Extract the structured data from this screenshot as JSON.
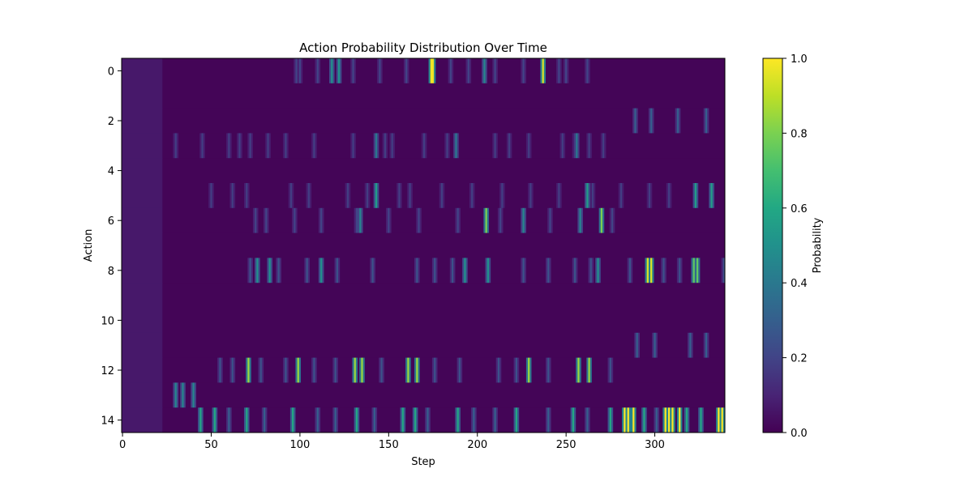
{
  "chart_data": {
    "type": "heatmap",
    "title": "Action Probability Distribution Over Time",
    "xlabel": "Step",
    "ylabel": "Action",
    "xlim": [
      -0.5,
      339.5
    ],
    "ylim": [
      14.5,
      -0.5
    ],
    "x_ticks": [
      0,
      50,
      100,
      150,
      200,
      250,
      300
    ],
    "y_ticks": [
      0,
      2,
      4,
      6,
      8,
      10,
      12,
      14
    ],
    "n_steps": 340,
    "n_actions": 15,
    "colormap": "viridis",
    "colorbar": {
      "label": "Probability",
      "range": [
        0,
        1
      ],
      "ticks": [
        "0.0",
        "0.2",
        "0.4",
        "0.6",
        "0.8",
        "1.0"
      ]
    },
    "background_value": 0.01,
    "early_uniform": {
      "step_end": 22,
      "value": 0.067
    },
    "highlights": [
      {
        "action": 0,
        "steps": [
          174,
          175
        ],
        "value": 0.98
      },
      {
        "action": 0,
        "steps": [
          237
        ],
        "value": 0.95
      },
      {
        "action": 0,
        "steps": [
          118,
          122
        ],
        "value": 0.5
      },
      {
        "action": 0,
        "steps": [
          204
        ],
        "value": 0.45
      },
      {
        "action": 0,
        "steps": [
          98,
          100,
          110,
          130,
          145,
          160,
          185,
          195,
          210,
          226,
          246,
          250,
          262
        ],
        "value": 0.2
      },
      {
        "action": 2,
        "steps": [
          289,
          298,
          313,
          329
        ],
        "value": 0.3
      },
      {
        "action": 3,
        "steps": [
          30,
          45,
          60,
          66,
          72,
          82,
          92,
          108,
          130,
          148,
          152,
          170,
          183,
          210,
          218,
          229,
          248,
          255,
          263,
          271
        ],
        "value": 0.18
      },
      {
        "action": 3,
        "steps": [
          143,
          188,
          256
        ],
        "value": 0.4
      },
      {
        "action": 5,
        "steps": [
          50,
          62,
          70,
          95,
          105,
          127,
          138,
          156,
          162,
          180,
          197,
          214,
          230,
          246,
          265,
          281,
          297,
          308
        ],
        "value": 0.18
      },
      {
        "action": 5,
        "steps": [
          143,
          262,
          323,
          332
        ],
        "value": 0.55
      },
      {
        "action": 6,
        "steps": [
          75,
          81,
          97,
          112,
          132,
          150,
          167,
          189,
          213,
          226,
          241,
          276
        ],
        "value": 0.2
      },
      {
        "action": 6,
        "steps": [
          205,
          270
        ],
        "value": 0.8
      },
      {
        "action": 6,
        "steps": [
          134,
          226,
          258
        ],
        "value": 0.45
      },
      {
        "action": 8,
        "steps": [
          72,
          88,
          104,
          121,
          141,
          166,
          176,
          186,
          226,
          240,
          255,
          264,
          286,
          305,
          314,
          339
        ],
        "value": 0.25
      },
      {
        "action": 8,
        "steps": [
          296,
          298
        ],
        "value": 0.95
      },
      {
        "action": 8,
        "steps": [
          322,
          324
        ],
        "value": 0.75
      },
      {
        "action": 8,
        "steps": [
          76,
          83,
          112,
          193,
          206,
          268
        ],
        "value": 0.5
      },
      {
        "action": 11,
        "steps": [
          290,
          300,
          320,
          329
        ],
        "value": 0.3
      },
      {
        "action": 12,
        "steps": [
          71,
          99,
          131,
          135,
          161,
          166,
          229,
          257,
          263
        ],
        "value": 0.85
      },
      {
        "action": 12,
        "steps": [
          55,
          62,
          78,
          92,
          108,
          120,
          146,
          176,
          190,
          212,
          222,
          240,
          275
        ],
        "value": 0.25
      },
      {
        "action": 13,
        "steps": [
          30,
          34,
          40
        ],
        "value": 0.45
      },
      {
        "action": 14,
        "steps": [
          283,
          285,
          288,
          306,
          308,
          310,
          314,
          336,
          338
        ],
        "value": 1.0
      },
      {
        "action": 14,
        "steps": [
          44,
          52,
          70,
          96,
          132,
          158,
          165,
          189,
          222,
          254,
          275,
          294,
          318,
          326
        ],
        "value": 0.6
      },
      {
        "action": 14,
        "steps": [
          60,
          80,
          110,
          120,
          142,
          172,
          198,
          210,
          240,
          262,
          301
        ],
        "value": 0.3
      }
    ]
  }
}
